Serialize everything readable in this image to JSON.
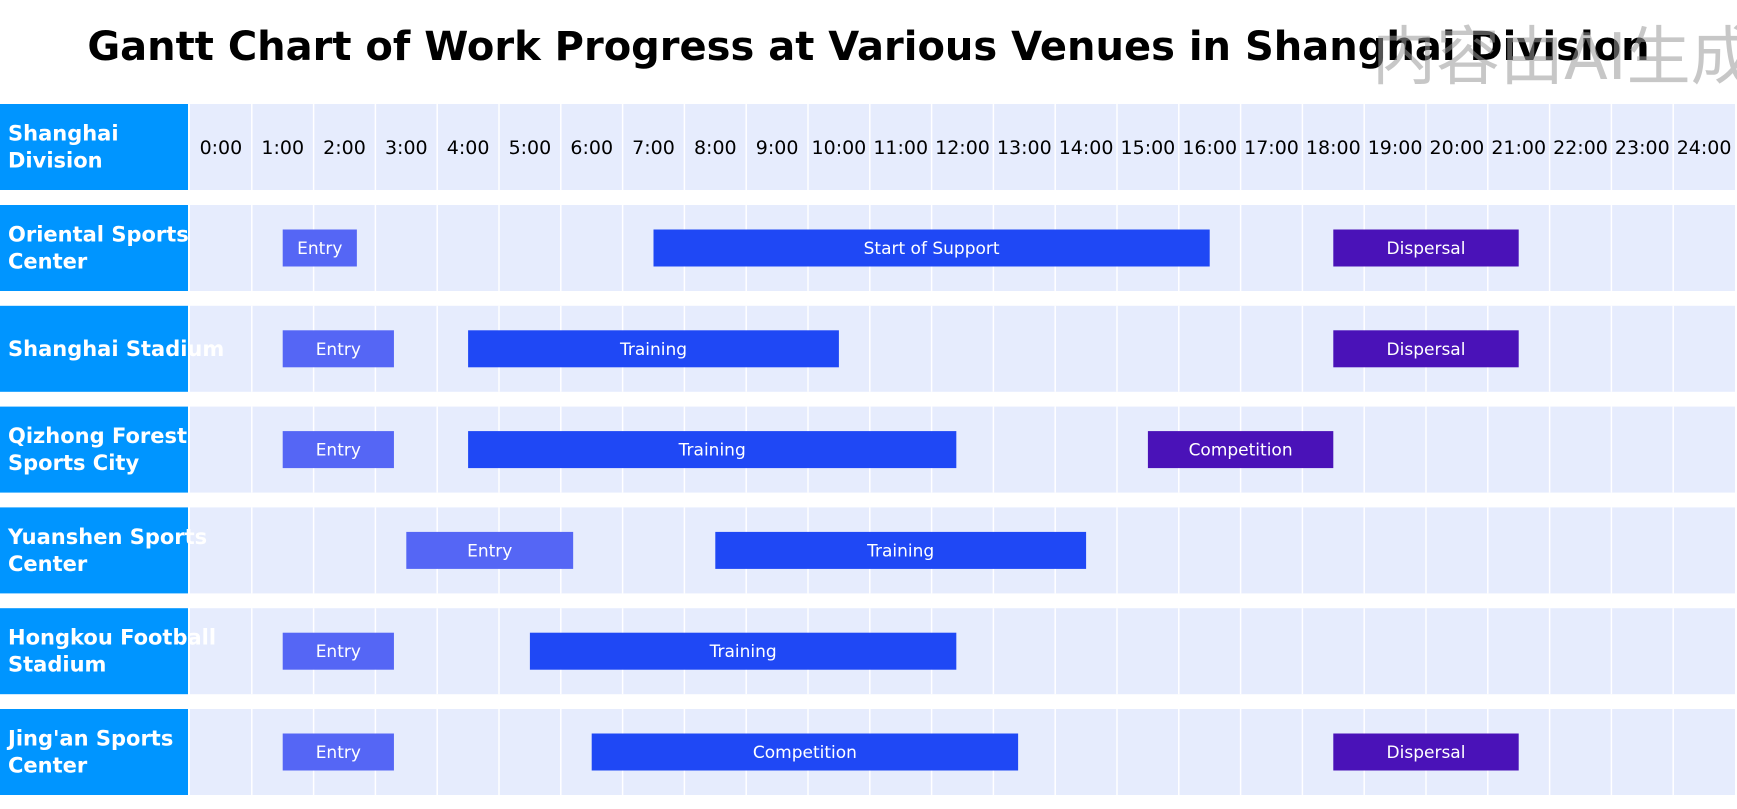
{
  "chart_data": {
    "type": "gantt",
    "title": "Gantt Chart of Work Progress at Various Venues in Shanghai Division",
    "header_label": "Shanghai Division",
    "time_ticks": [
      "0:00",
      "1:00",
      "2:00",
      "3:00",
      "4:00",
      "5:00",
      "6:00",
      "7:00",
      "8:00",
      "9:00",
      "10:00",
      "11:00",
      "12:00",
      "13:00",
      "14:00",
      "15:00",
      "16:00",
      "17:00",
      "18:00",
      "19:00",
      "20:00",
      "21:00",
      "22:00",
      "23:00",
      "24:00"
    ],
    "x_range": [
      0,
      24
    ],
    "categories": [
      "Oriental Sports Center",
      "Shanghai Stadium",
      "Qizhong Forest Sports City",
      "Yuanshen Sports Center",
      "Hongkou Football Stadium",
      "Jing'an Sports Center"
    ],
    "tasks": [
      {
        "venue": "Oriental Sports Center",
        "label": "Entry",
        "start": 1.0,
        "end": 2.2,
        "color": "#5566f5"
      },
      {
        "venue": "Oriental Sports Center",
        "label": "Start of Support",
        "start": 7.0,
        "end": 16.0,
        "color": "#1f48f5"
      },
      {
        "venue": "Oriental Sports Center",
        "label": "Dispersal",
        "start": 18.0,
        "end": 21.0,
        "color": "#4a12b8"
      },
      {
        "venue": "Shanghai Stadium",
        "label": "Entry",
        "start": 1.0,
        "end": 2.8,
        "color": "#5566f5"
      },
      {
        "venue": "Shanghai Stadium",
        "label": "Training",
        "start": 4.0,
        "end": 10.0,
        "color": "#1f48f5"
      },
      {
        "venue": "Shanghai Stadium",
        "label": "Dispersal",
        "start": 18.0,
        "end": 21.0,
        "color": "#4a12b8"
      },
      {
        "venue": "Qizhong Forest Sports City",
        "label": "Entry",
        "start": 1.0,
        "end": 2.8,
        "color": "#5566f5"
      },
      {
        "venue": "Qizhong Forest Sports City",
        "label": "Training",
        "start": 4.0,
        "end": 11.9,
        "color": "#1f48f5"
      },
      {
        "venue": "Qizhong Forest Sports City",
        "label": "Competition",
        "start": 15.0,
        "end": 18.0,
        "color": "#4a12b8"
      },
      {
        "venue": "Yuanshen Sports Center",
        "label": "Entry",
        "start": 3.0,
        "end": 5.7,
        "color": "#5566f5"
      },
      {
        "venue": "Yuanshen Sports Center",
        "label": "Training",
        "start": 8.0,
        "end": 14.0,
        "color": "#1f48f5"
      },
      {
        "venue": "Hongkou Football Stadium",
        "label": "Entry",
        "start": 1.0,
        "end": 2.8,
        "color": "#5566f5"
      },
      {
        "venue": "Hongkou Football Stadium",
        "label": "Training",
        "start": 5.0,
        "end": 11.9,
        "color": "#1f48f5"
      },
      {
        "venue": "Jing'an Sports Center",
        "label": "Entry",
        "start": 1.0,
        "end": 2.8,
        "color": "#5566f5"
      },
      {
        "venue": "Jing'an Sports Center",
        "label": "Competition",
        "start": 6.0,
        "end": 12.9,
        "color": "#1f48f5"
      },
      {
        "venue": "Jing'an Sports Center",
        "label": "Dispersal",
        "start": 18.0,
        "end": 21.0,
        "color": "#4a12b8"
      }
    ],
    "colors": {
      "label_background": "#0095ff",
      "row_background": "#e6ecfd"
    },
    "grid": true
  },
  "watermark": "内容由AI生成"
}
